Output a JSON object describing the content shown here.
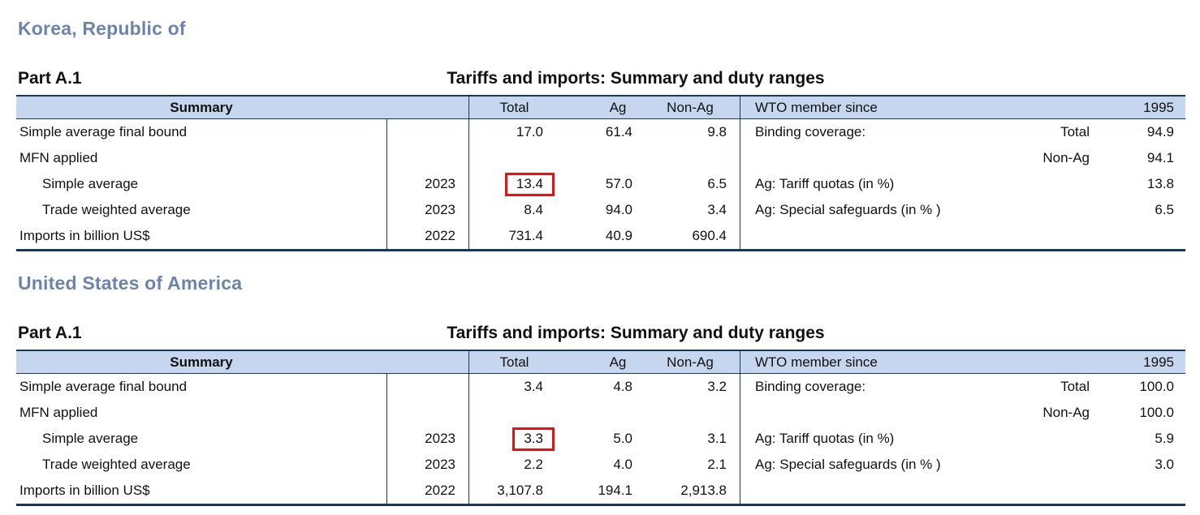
{
  "colors": {
    "heading_blue": "#6b84ae",
    "header_fill": "#c6d6ee",
    "border_dark": "#17375e",
    "highlight_red": "#e01414"
  },
  "sections": [
    {
      "country": "Korea, Republic of",
      "part_label": "Part A.1",
      "part_title": "Tariffs and imports: Summary and duty ranges",
      "header": {
        "summary": "Summary",
        "total": "Total",
        "ag": "Ag",
        "non_ag": "Non-Ag",
        "member_label": "WTO member since",
        "member_value": "1995"
      },
      "rows": [
        {
          "label": "Simple average final bound",
          "year": "",
          "total": "17.0",
          "ag": "61.4",
          "non_ag": "9.8",
          "r_label": "Binding coverage:",
          "r_sub": "Total",
          "r_value": "94.9"
        },
        {
          "label": "MFN applied",
          "year": "",
          "total": "",
          "ag": "",
          "non_ag": "",
          "r_label": "",
          "r_sub": "Non-Ag",
          "r_value": "94.1"
        },
        {
          "label": "Simple average",
          "year": "2023",
          "total": "13.4",
          "ag": "57.0",
          "non_ag": "6.5",
          "r_label": "Ag: Tariff quotas (in %)",
          "r_sub": "",
          "r_value": "13.8",
          "highlighted": true
        },
        {
          "label": "Trade weighted average",
          "year": "2023",
          "total": "8.4",
          "ag": "94.0",
          "non_ag": "3.4",
          "r_label": "Ag: Special safeguards (in % )",
          "r_sub": "",
          "r_value": "6.5"
        },
        {
          "label": "Imports in billion US$",
          "year": "2022",
          "total": "731.4",
          "ag": "40.9",
          "non_ag": "690.4",
          "r_label": "",
          "r_sub": "",
          "r_value": ""
        }
      ]
    },
    {
      "country": "United States of America",
      "part_label": "Part A.1",
      "part_title": "Tariffs and imports: Summary and duty ranges",
      "header": {
        "summary": "Summary",
        "total": "Total",
        "ag": "Ag",
        "non_ag": "Non-Ag",
        "member_label": "WTO member since",
        "member_value": "1995"
      },
      "rows": [
        {
          "label": "Simple average final bound",
          "year": "",
          "total": "3.4",
          "ag": "4.8",
          "non_ag": "3.2",
          "r_label": "Binding coverage:",
          "r_sub": "Total",
          "r_value": "100.0"
        },
        {
          "label": "MFN applied",
          "year": "",
          "total": "",
          "ag": "",
          "non_ag": "",
          "r_label": "",
          "r_sub": "Non-Ag",
          "r_value": "100.0"
        },
        {
          "label": "Simple average",
          "year": "2023",
          "total": "3.3",
          "ag": "5.0",
          "non_ag": "3.1",
          "r_label": "Ag: Tariff quotas (in %)",
          "r_sub": "",
          "r_value": "5.9",
          "highlighted": true
        },
        {
          "label": "Trade weighted average",
          "year": "2023",
          "total": "2.2",
          "ag": "4.0",
          "non_ag": "2.1",
          "r_label": "Ag: Special safeguards (in % )",
          "r_sub": "",
          "r_value": "3.0"
        },
        {
          "label": "Imports in billion US$",
          "year": "2022",
          "total": "3,107.8",
          "ag": "194.1",
          "non_ag": "2,913.8",
          "r_label": "",
          "r_sub": "",
          "r_value": ""
        }
      ]
    }
  ]
}
